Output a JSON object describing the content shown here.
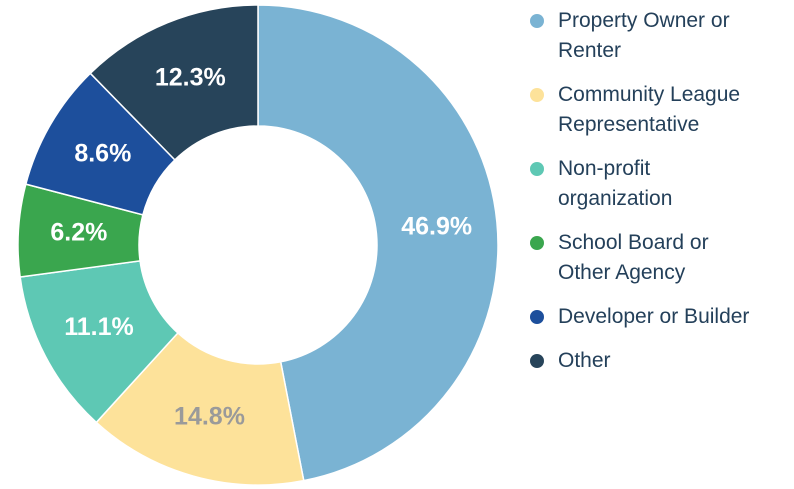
{
  "chart_data": {
    "type": "donut",
    "categories": [
      "Property Owner or\nRenter",
      "Community League\nRepresentative",
      "Non-profit\norganization",
      "School Board or\nOther Agency",
      "Developer or Builder",
      "Other"
    ],
    "values": [
      46.9,
      14.8,
      11.1,
      6.2,
      8.6,
      12.3
    ],
    "value_labels": [
      "46.9%",
      "14.8%",
      "11.1%",
      "6.2%",
      "8.6%",
      "12.3%"
    ],
    "colors": [
      "#7ab3d3",
      "#fde29a",
      "#5ec8b4",
      "#3aa64e",
      "#1d4f9c",
      "#27445a"
    ],
    "label_colors": [
      "#ffffff",
      "#9a9a9a",
      "#ffffff",
      "#ffffff",
      "#ffffff",
      "#ffffff"
    ],
    "legend": "right"
  }
}
